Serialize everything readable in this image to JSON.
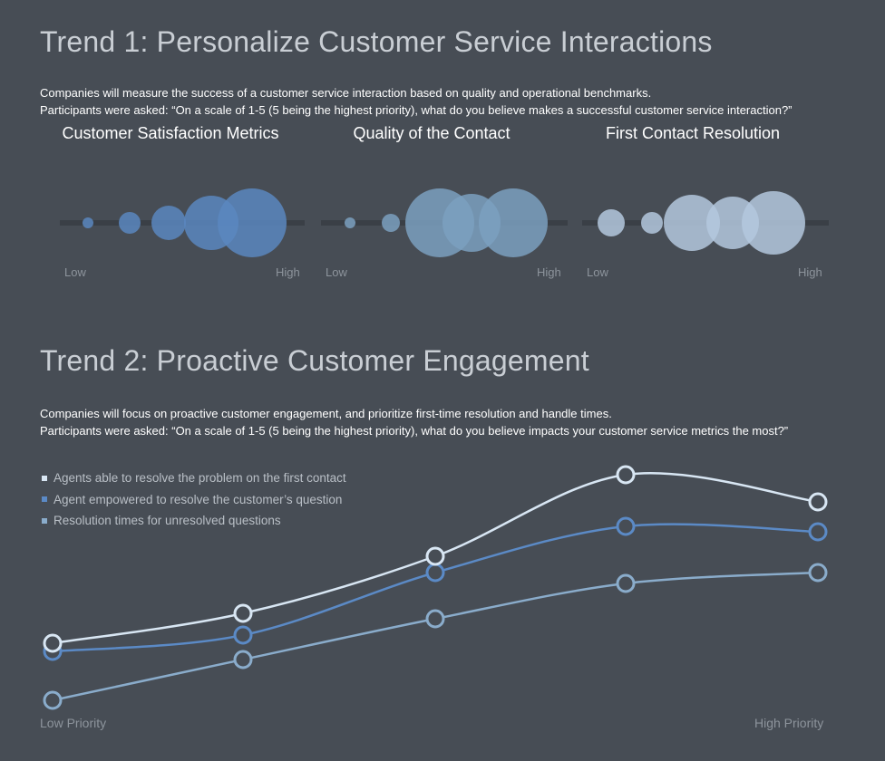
{
  "trend1": {
    "title": "Trend 1: Personalize Customer Service Interactions",
    "description": "Companies will measure the success of a customer service interaction based on quality and operational benchmarks.",
    "question": "Participants were asked: “On a scale of 1-5 (5 being the highest priority), what do you believe makes a successful customer service interaction?”"
  },
  "trend2": {
    "title": "Trend 2: Proactive Customer Engagement",
    "description": "Companies will focus on proactive customer engagement, and prioritize first-time resolution and handle times.",
    "question": "Participants were asked: “On a scale of 1-5 (5 being the highest priority), what do you believe impacts your customer service metrics the most?”"
  },
  "chart_data": [
    {
      "type": "bubble",
      "title": "Customer Satisfaction Metrics",
      "categories": [
        "1",
        "2",
        "3",
        "4",
        "5"
      ],
      "values": [
        6,
        12,
        19,
        30,
        38
      ],
      "low_label": "Low",
      "high_label": "High",
      "color": "#5a87bf"
    },
    {
      "type": "bubble",
      "title": "Quality of the Contact",
      "categories": [
        "1",
        "2",
        "3",
        "4",
        "5"
      ],
      "values": [
        6,
        10,
        38,
        32,
        38
      ],
      "low_label": "Low",
      "high_label": "High",
      "color": "#7ba0bf"
    },
    {
      "type": "bubble",
      "title": "First Contact Resolution",
      "categories": [
        "1",
        "2",
        "3",
        "4",
        "5"
      ],
      "values": [
        15,
        12,
        31,
        29,
        35
      ],
      "low_label": "Low",
      "high_label": "High",
      "color": "#b4c8de"
    },
    {
      "type": "line",
      "categories": [
        "1",
        "2",
        "3",
        "4",
        "5"
      ],
      "xlabel_low": "Low Priority",
      "xlabel_high": "High Priority",
      "ylim": [
        0,
        100
      ],
      "grid": false,
      "legend": "top-left",
      "series": [
        {
          "name": "Agents able to resolve the problem on the first contact",
          "values": [
            30,
            41,
            62,
            92,
            82
          ],
          "color": "#d8e6f3"
        },
        {
          "name": "Agent empowered to resolve the customer’s question",
          "values": [
            27,
            33,
            56,
            73,
            71
          ],
          "color": "#5b8ac6"
        },
        {
          "name": "Resolution times for unresolved questions",
          "values": [
            9,
            24,
            39,
            52,
            56
          ],
          "color": "#8aaccb"
        }
      ]
    }
  ]
}
